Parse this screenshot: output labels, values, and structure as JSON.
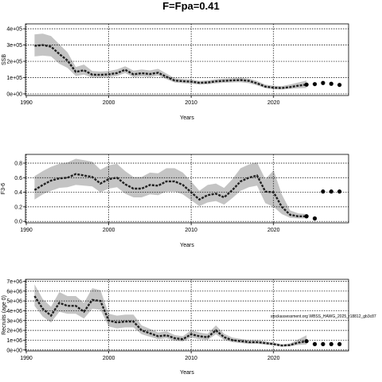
{
  "figure": {
    "title": "F=Fpa=0.41",
    "watermark": "stockassessment.org WBSS_HAWG_2025_r18812_gb3c87"
  },
  "chart_data": [
    {
      "type": "line",
      "ylabel": "SSB",
      "xlabel": "Years",
      "xlim": [
        1989.9,
        2029.1
      ],
      "ylim": [
        -10000,
        430000
      ],
      "xticks": [
        1990,
        2000,
        2010,
        2020
      ],
      "xtick_labels": [
        "1990",
        "2000",
        "2010",
        "2020"
      ],
      "yticks": [
        0,
        100000,
        200000,
        300000,
        400000
      ],
      "ytick_labels": [
        "0e+00",
        "1e+05",
        "2e+05",
        "3e+05",
        "4e+05"
      ],
      "grid": true,
      "x": [
        1991,
        1992,
        1993,
        1994,
        1995,
        1996,
        1997,
        1998,
        1999,
        2000,
        2001,
        2002,
        2003,
        2004,
        2005,
        2006,
        2007,
        2008,
        2009,
        2010,
        2011,
        2012,
        2013,
        2014,
        2015,
        2016,
        2017,
        2018,
        2019,
        2020,
        2021,
        2022,
        2023,
        2024
      ],
      "series": [
        {
          "values": [
            295000,
            300000,
            290000,
            245000,
            205000,
            135000,
            145000,
            118000,
            117000,
            120000,
            128000,
            148000,
            120000,
            127000,
            122000,
            130000,
            105000,
            82000,
            78000,
            75000,
            68000,
            70000,
            77000,
            80000,
            83000,
            85000,
            80000,
            65000,
            45000,
            38000,
            36000,
            42000,
            50000,
            57000
          ]
        },
        {
          "values": [
            230000,
            235000,
            230000,
            185000,
            160000,
            110000,
            118000,
            100000,
            100000,
            104000,
            110000,
            128000,
            103000,
            108000,
            104000,
            112000,
            90000,
            70000,
            66000,
            63000,
            57000,
            59000,
            65000,
            68000,
            70000,
            71000,
            66000,
            52000,
            35000,
            29000,
            27000,
            31000,
            34000,
            36000
          ]
        },
        {
          "values": [
            365000,
            370000,
            355000,
            305000,
            255000,
            165000,
            180000,
            140000,
            137000,
            140000,
            150000,
            170000,
            143000,
            150000,
            144000,
            154000,
            125000,
            96000,
            92000,
            89000,
            80000,
            83000,
            90000,
            94000,
            97000,
            100000,
            94000,
            79000,
            57000,
            50000,
            48000,
            58000,
            70000,
            82000
          ]
        }
      ],
      "projection": {
        "x": [
          2024,
          2025,
          2026,
          2027,
          2028
        ],
        "values": [
          57000,
          60000,
          67000,
          62000,
          55000
        ]
      }
    },
    {
      "type": "line",
      "ylabel": "F3-6",
      "xlabel": "Years",
      "xlim": [
        1989.9,
        2029.1
      ],
      "ylim": [
        -0.02,
        0.92
      ],
      "xticks": [
        1990,
        2000,
        2010,
        2020
      ],
      "xtick_labels": [
        "1990",
        "2000",
        "2010",
        "2020"
      ],
      "yticks": [
        0,
        0.2,
        0.4,
        0.6,
        0.8
      ],
      "ytick_labels": [
        "0.0",
        "0.2",
        "0.4",
        "0.6",
        "0.8"
      ],
      "grid": true,
      "x": [
        1991,
        1992,
        1993,
        1994,
        1995,
        1996,
        1997,
        1998,
        1999,
        2000,
        2001,
        2002,
        2003,
        2004,
        2005,
        2006,
        2007,
        2008,
        2009,
        2010,
        2011,
        2012,
        2013,
        2014,
        2015,
        2016,
        2017,
        2018,
        2019,
        2020,
        2021,
        2022,
        2023,
        2024
      ],
      "series": [
        {
          "values": [
            0.43,
            0.5,
            0.56,
            0.59,
            0.6,
            0.65,
            0.63,
            0.61,
            0.52,
            0.58,
            0.6,
            0.51,
            0.45,
            0.45,
            0.5,
            0.49,
            0.55,
            0.55,
            0.5,
            0.4,
            0.3,
            0.36,
            0.38,
            0.33,
            0.43,
            0.55,
            0.6,
            0.63,
            0.41,
            0.4,
            0.2,
            0.09,
            0.07,
            0.07
          ]
        },
        {
          "values": [
            0.3,
            0.37,
            0.42,
            0.46,
            0.47,
            0.5,
            0.49,
            0.48,
            0.4,
            0.45,
            0.47,
            0.38,
            0.33,
            0.33,
            0.37,
            0.36,
            0.41,
            0.41,
            0.37,
            0.29,
            0.21,
            0.26,
            0.28,
            0.23,
            0.32,
            0.42,
            0.47,
            0.49,
            0.25,
            0.2,
            0.1,
            0.05,
            0.04,
            0.04
          ]
        },
        {
          "values": [
            0.62,
            0.69,
            0.75,
            0.79,
            0.81,
            0.86,
            0.84,
            0.82,
            0.71,
            0.77,
            0.79,
            0.69,
            0.61,
            0.61,
            0.67,
            0.66,
            0.73,
            0.73,
            0.67,
            0.55,
            0.42,
            0.5,
            0.52,
            0.46,
            0.58,
            0.73,
            0.78,
            0.81,
            0.58,
            0.7,
            0.37,
            0.15,
            0.11,
            0.1
          ]
        }
      ],
      "projection": {
        "x": [
          2024,
          2025,
          2026,
          2027,
          2028
        ],
        "values": [
          0.07,
          0.04,
          0.41,
          0.41,
          0.41
        ]
      }
    },
    {
      "type": "line",
      "ylabel": "Recruits (age 0)",
      "xlabel": "Years",
      "xlim": [
        1989.9,
        2029.1
      ],
      "ylim": [
        -100000,
        7200000
      ],
      "xticks": [
        1990,
        2000,
        2010,
        2020
      ],
      "xtick_labels": [
        "1990",
        "2000",
        "2010",
        "2020"
      ],
      "yticks": [
        0,
        1000000,
        2000000,
        3000000,
        4000000,
        5000000,
        6000000,
        7000000
      ],
      "ytick_labels": [
        "0e+00",
        "1e+06",
        "2e+06",
        "3e+06",
        "4e+06",
        "5e+06",
        "6e+06",
        "7e+06"
      ],
      "grid": true,
      "x": [
        1991,
        1992,
        1993,
        1994,
        1995,
        1996,
        1997,
        1998,
        1999,
        2000,
        2001,
        2002,
        2003,
        2004,
        2005,
        2006,
        2007,
        2008,
        2009,
        2010,
        2011,
        2012,
        2013,
        2014,
        2015,
        2016,
        2017,
        2018,
        2019,
        2020,
        2021,
        2022,
        2023,
        2024
      ],
      "series": [
        {
          "values": [
            5500000,
            4200000,
            3500000,
            4800000,
            4500000,
            4500000,
            3900000,
            5100000,
            5000000,
            3000000,
            2800000,
            2900000,
            2900000,
            2000000,
            1700000,
            1400000,
            1500000,
            1200000,
            1100000,
            1600000,
            1400000,
            1300000,
            2000000,
            1300000,
            1000000,
            900000,
            800000,
            800000,
            700000,
            600000,
            450000,
            500000,
            750000,
            900000
          ]
        },
        {
          "values": [
            4500000,
            3400000,
            2800000,
            3900000,
            3700000,
            3700000,
            3200000,
            4200000,
            4100000,
            2400000,
            2200000,
            2300000,
            2300000,
            1600000,
            1350000,
            1100000,
            1200000,
            950000,
            870000,
            1270000,
            1100000,
            1030000,
            1600000,
            1030000,
            790000,
            710000,
            630000,
            630000,
            550000,
            470000,
            350000,
            380000,
            520000,
            550000
          ]
        },
        {
          "values": [
            6700000,
            5200000,
            4400000,
            5900000,
            5500000,
            5500000,
            4800000,
            6300000,
            6100000,
            3700000,
            3500000,
            3600000,
            3600000,
            2500000,
            2150000,
            1780000,
            1900000,
            1520000,
            1400000,
            2020000,
            1780000,
            1650000,
            2500000,
            1650000,
            1270000,
            1140000,
            1020000,
            1020000,
            890000,
            760000,
            580000,
            660000,
            1080000,
            1500000
          ]
        }
      ],
      "projection": {
        "x": [
          2024,
          2025,
          2026,
          2027,
          2028
        ],
        "values": [
          900000,
          600000,
          600000,
          600000,
          600000
        ]
      }
    }
  ]
}
